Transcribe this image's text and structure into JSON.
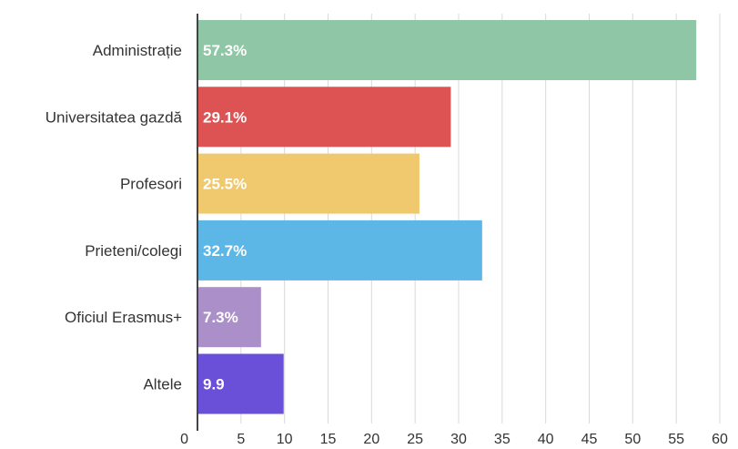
{
  "chart_data": {
    "type": "bar",
    "orientation": "horizontal",
    "categories": [
      "Administrație",
      "Universitatea gazdă",
      "Profesori",
      "Prieteni/colegi",
      "Oficiul Erasmus+",
      "Altele"
    ],
    "values": [
      57.3,
      29.1,
      25.5,
      32.7,
      7.3,
      9.9
    ],
    "data_labels": [
      "57.3%",
      "29.1%",
      "25.5%",
      "32.7%",
      "7.3%",
      "9.9"
    ],
    "colors": [
      "#8ec6a6",
      "#dd5353",
      "#f0c96e",
      "#5db7e6",
      "#ab8fc9",
      "#6a4fd8"
    ],
    "xlim": [
      0,
      60
    ],
    "xticks": [
      0,
      5,
      10,
      15,
      20,
      25,
      30,
      35,
      40,
      45,
      50,
      55,
      60
    ],
    "grid": true,
    "legend": "none",
    "title": "",
    "xlabel": "",
    "ylabel": ""
  }
}
